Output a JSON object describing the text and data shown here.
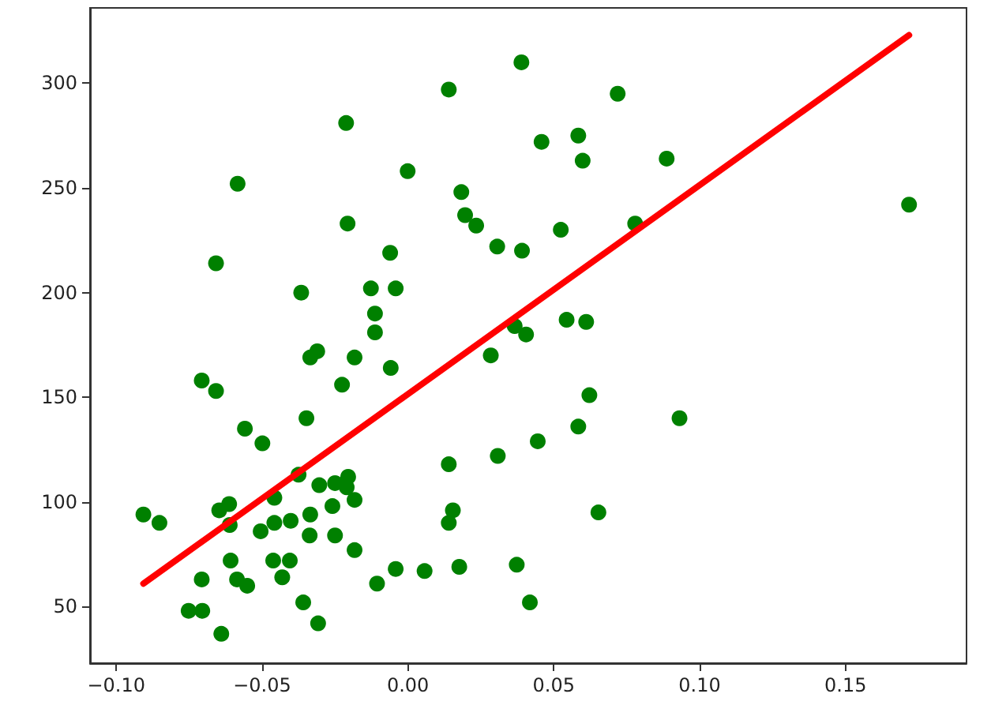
{
  "chart_data": {
    "type": "scatter",
    "xlim": [
      -0.109,
      0.1915
    ],
    "ylim": [
      23,
      336
    ],
    "xticks": [
      {
        "value": -0.1,
        "label": "−0.10"
      },
      {
        "value": -0.05,
        "label": "−0.05"
      },
      {
        "value": 0,
        "label": "0.00"
      },
      {
        "value": 0.05,
        "label": "0.05"
      },
      {
        "value": 0.1,
        "label": "0.10"
      },
      {
        "value": 0.15,
        "label": "0.15"
      }
    ],
    "yticks": [
      50,
      100,
      150,
      200,
      250,
      300
    ],
    "grid": false,
    "series": [
      {
        "color": "#008000",
        "marker": "circle",
        "x": [
          -0.0212,
          -0.0584,
          -0.0001,
          -0.0207,
          -0.0061,
          -0.0658,
          -0.0366,
          -0.0127,
          -0.0042,
          -0.0113,
          -0.0113,
          -0.0311,
          -0.0335,
          -0.0183,
          -0.0059,
          -0.0707,
          -0.0658,
          -0.0226,
          -0.0348,
          -0.0559,
          -0.0499,
          -0.0375,
          -0.0458,
          -0.0304,
          -0.025,
          -0.0205,
          -0.021,
          -0.0183,
          -0.0259,
          -0.0335,
          -0.0613,
          -0.0647,
          -0.0611,
          -0.0907,
          -0.0852,
          -0.0505,
          -0.0458,
          -0.0402,
          -0.0337,
          -0.025,
          -0.0183,
          -0.0608,
          -0.0462,
          -0.0405,
          -0.0431,
          -0.0707,
          -0.0586,
          -0.0551,
          -0.0106,
          -0.0042,
          -0.0752,
          -0.0705,
          -0.0359,
          -0.0308,
          -0.064,
          0.0389,
          0.014,
          0.0719,
          0.0458,
          0.0584,
          0.0599,
          0.0887,
          0.0183,
          0.0196,
          0.0234,
          0.0306,
          0.0391,
          0.0524,
          0.0779,
          0.0544,
          0.0611,
          0.0366,
          0.0405,
          0.0284,
          0.0622,
          0.0931,
          0.0584,
          0.0445,
          0.0308,
          0.014,
          0.0154,
          0.014,
          0.0653,
          0.0057,
          0.0176,
          0.0373,
          0.0418,
          0.1718
        ],
        "values": [
          281,
          252,
          258,
          233,
          219,
          214,
          200,
          202,
          202,
          190,
          181,
          172,
          169,
          169,
          164,
          158,
          153,
          156,
          140,
          135,
          128,
          113,
          102,
          108,
          109,
          112,
          107,
          101,
          98,
          94,
          99,
          96,
          89,
          94,
          90,
          86,
          90,
          91,
          84,
          84,
          77,
          72,
          72,
          72,
          64,
          63,
          63,
          60,
          61,
          68,
          48,
          48,
          52,
          42,
          37,
          310,
          297,
          295,
          272,
          275,
          263,
          264,
          248,
          237,
          232,
          222,
          220,
          230,
          233,
          187,
          186,
          184,
          180,
          170,
          151,
          140,
          136,
          129,
          122,
          118,
          96,
          90,
          95,
          67,
          69,
          70,
          52,
          242
        ]
      },
      {
        "type": "line",
        "color": "#ff0000",
        "marker": "none",
        "line_style": "solid",
        "x": [
          -0.0907,
          0.1718
        ],
        "values": [
          61,
          323
        ]
      }
    ]
  }
}
